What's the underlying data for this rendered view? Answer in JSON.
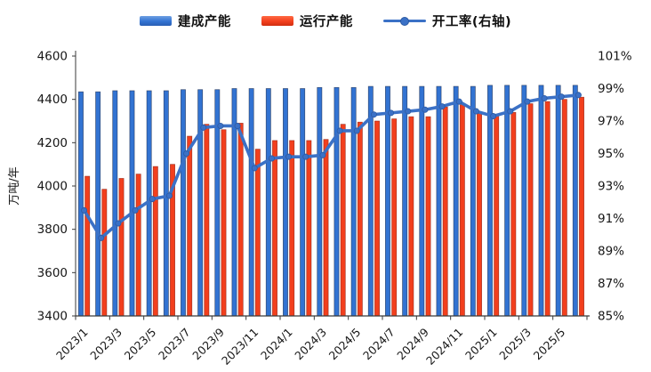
{
  "chart_data": {
    "type": "bar+line combo",
    "title": "",
    "legend_position": "top-center",
    "grid": false,
    "left_axis": {
      "title": "万吨/年",
      "min": 3400,
      "max": 4600,
      "tick_step": 200,
      "ticks": [
        3400,
        3600,
        3800,
        4000,
        4200,
        4400,
        4600
      ]
    },
    "right_axis": {
      "title": "",
      "min": 85,
      "max": 101,
      "tick_step": 2,
      "ticks": [
        "85%",
        "87%",
        "89%",
        "91%",
        "93%",
        "95%",
        "97%",
        "99%",
        "101%"
      ]
    },
    "x": [
      "2023/1",
      "2023/2",
      "2023/3",
      "2023/4",
      "2023/5",
      "2023/6",
      "2023/7",
      "2023/8",
      "2023/9",
      "2023/10",
      "2023/11",
      "2023/12",
      "2024/1",
      "2024/2",
      "2024/3",
      "2024/4",
      "2024/5",
      "2024/6",
      "2024/7",
      "2024/8",
      "2024/9",
      "2024/10",
      "2024/11",
      "2024/12",
      "2025/1",
      "2025/2",
      "2025/3",
      "2025/4",
      "2025/5",
      "2025/6"
    ],
    "x_tick_labels": [
      "2023/1",
      "2023/3",
      "2023/5",
      "2023/7",
      "2023/9",
      "2023/11",
      "2024/1",
      "2024/3",
      "2024/5",
      "2024/7",
      "2024/9",
      "2024/11",
      "2025/1",
      "2025/3",
      "2025/5"
    ],
    "series": [
      {
        "name": "建成产能",
        "type": "bar",
        "axis": "left",
        "color": "#3273d2",
        "edge_color": "#1c2e52",
        "values": [
          4435,
          4435,
          4440,
          4440,
          4440,
          4440,
          4445,
          4445,
          4445,
          4450,
          4450,
          4450,
          4450,
          4450,
          4455,
          4455,
          4455,
          4460,
          4460,
          4460,
          4460,
          4460,
          4460,
          4460,
          4465,
          4465,
          4465,
          4465,
          4465,
          4465
        ]
      },
      {
        "name": "运行产能",
        "type": "bar",
        "axis": "left",
        "color": "#f23f1d",
        "edge_color": "#8f1d0e",
        "values": [
          4045,
          3985,
          4035,
          4055,
          4090,
          4100,
          4230,
          4285,
          4260,
          4290,
          4170,
          4210,
          4210,
          4210,
          4215,
          4285,
          4295,
          4300,
          4310,
          4320,
          4320,
          4365,
          4375,
          4335,
          4325,
          4340,
          4380,
          4390,
          4400,
          4410
        ]
      },
      {
        "name": "开工率(右轴)",
        "type": "line",
        "axis": "right",
        "color": "#3b71c6",
        "marker": "circle",
        "values": [
          91.5,
          89.8,
          90.7,
          91.5,
          92.2,
          92.4,
          95.0,
          96.6,
          96.7,
          96.7,
          94.1,
          94.7,
          94.8,
          94.8,
          94.9,
          96.4,
          96.4,
          97.4,
          97.5,
          97.6,
          97.7,
          97.9,
          98.2,
          97.6,
          97.3,
          97.6,
          98.2,
          98.4,
          98.5,
          98.6
        ]
      }
    ]
  }
}
